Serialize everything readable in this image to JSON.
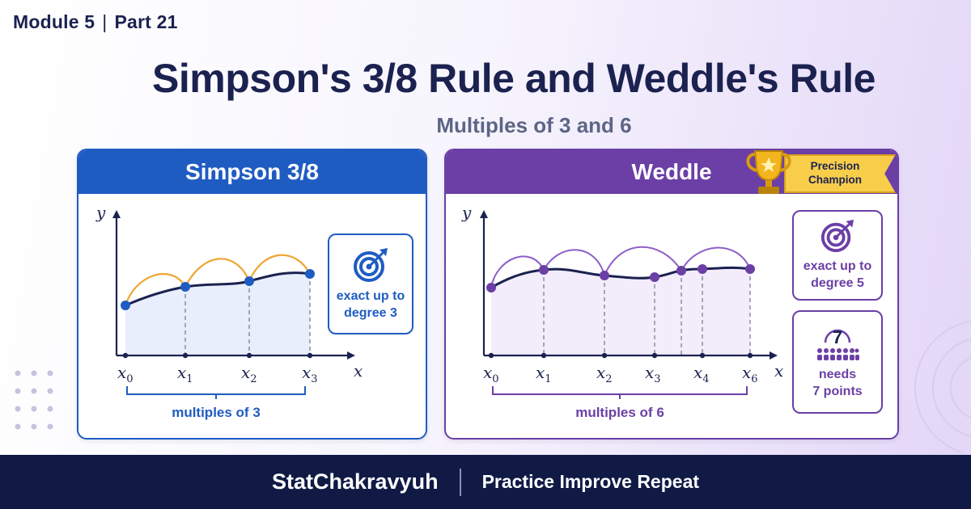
{
  "header": {
    "module": "Module 5",
    "part": "Part 21",
    "title": "Simpson's 3/8 Rule and Weddle's Rule",
    "subtitle": "Multiples of 3 and 6"
  },
  "panels": {
    "simpson": {
      "title": "Simpson 3/8",
      "y_label": "y",
      "x_label": "x",
      "ticks": [
        {
          "sym": "x",
          "sub": "0"
        },
        {
          "sym": "x",
          "sub": "1"
        },
        {
          "sym": "x",
          "sub": "2"
        },
        {
          "sym": "x",
          "sub": "3"
        }
      ],
      "brace_label": "multiples of 3",
      "info": {
        "line1": "exact up to",
        "line2": "degree 3",
        "icon": "target-icon"
      },
      "colors": {
        "accent": "#1f5cc2",
        "arc": "#f0a531"
      }
    },
    "weddle": {
      "title": "Weddle",
      "y_label": "y",
      "x_label": "x",
      "ticks": [
        {
          "sym": "x",
          "sub": "0"
        },
        {
          "sym": "x",
          "sub": "1"
        },
        {
          "sym": "x",
          "sub": "2"
        },
        {
          "sym": "x",
          "sub": "3"
        },
        {
          "sym": "x",
          "sub": "4"
        },
        {
          "sym": "x",
          "sub": "6"
        }
      ],
      "brace_label": "multiples of 6",
      "info": {
        "line1": "exact up to",
        "line2": "degree 5",
        "icon": "target-icon"
      },
      "points_info": {
        "number": "7",
        "line1": "needs",
        "line2": "7 points",
        "icon": "people-icon"
      },
      "badge": {
        "line1": "Precision",
        "line2": "Champion",
        "icon": "trophy-icon"
      },
      "colors": {
        "accent": "#6b3fa6",
        "arc": "#8c5fc8"
      }
    }
  },
  "footer": {
    "brand": "StatChakravyuh",
    "tagline": "Practice Improve Repeat"
  },
  "colors": {
    "navy": "#101a45",
    "blue": "#1f5cc2",
    "purple": "#6b3fa6",
    "gold": "#f7cd4a"
  }
}
